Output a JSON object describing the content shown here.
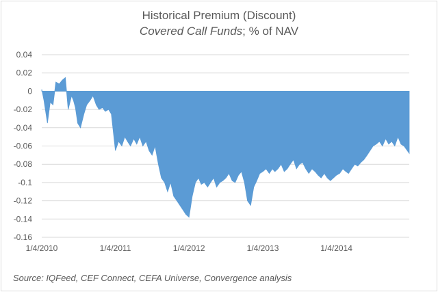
{
  "chart_data": {
    "type": "area",
    "title": "Historical Premium (Discount)",
    "subtitle_italic": "Covered Call Funds",
    "subtitle_rest": "; % of NAV",
    "xlabel": "",
    "ylabel": "",
    "ylim": [
      -0.16,
      0.04
    ],
    "yticks": [
      0.04,
      0.02,
      0,
      -0.02,
      -0.04,
      -0.06,
      -0.08,
      -0.1,
      -0.12,
      -0.14,
      -0.16
    ],
    "ytick_labels": [
      "0.04",
      "0.02",
      "0",
      "-0.02",
      "-0.04",
      "-0.06",
      "-0.08",
      "-0.1",
      "-0.12",
      "-0.14",
      "-0.16"
    ],
    "xlim": [
      "2010-01-04",
      "2014-12-31"
    ],
    "xticks": [
      "2010-01-04",
      "2011-01-04",
      "2012-01-04",
      "2013-01-04",
      "2014-01-04"
    ],
    "xtick_labels": [
      "1/4/2010",
      "1/4/2011",
      "1/4/2012",
      "1/4/2013",
      "1/4/2014"
    ],
    "grid": "horizontal",
    "legend": "none",
    "color": "#5b9bd5",
    "series": [
      {
        "x": [
          "2010-01-04",
          "2010-01-15",
          "2010-02-01",
          "2010-02-15",
          "2010-03-01",
          "2010-03-15",
          "2010-04-01",
          "2010-04-15",
          "2010-05-01",
          "2010-05-15",
          "2010-06-01",
          "2010-06-10",
          "2010-06-20",
          "2010-07-01",
          "2010-07-15",
          "2010-08-01",
          "2010-08-15",
          "2010-09-01",
          "2010-09-15",
          "2010-10-01",
          "2010-10-15",
          "2010-11-01",
          "2010-11-15",
          "2010-12-01",
          "2010-12-15",
          "2011-01-04",
          "2011-01-20",
          "2011-02-05",
          "2011-02-20",
          "2011-03-05",
          "2011-03-20",
          "2011-04-05",
          "2011-04-20",
          "2011-05-05",
          "2011-05-20",
          "2011-06-05",
          "2011-06-20",
          "2011-07-05",
          "2011-07-20",
          "2011-08-05",
          "2011-08-20",
          "2011-09-05",
          "2011-09-20",
          "2011-10-05",
          "2011-10-20",
          "2011-11-05",
          "2011-11-20",
          "2011-12-05",
          "2011-12-20",
          "2012-01-04",
          "2012-01-20",
          "2012-02-05",
          "2012-02-20",
          "2012-03-05",
          "2012-03-20",
          "2012-04-05",
          "2012-04-20",
          "2012-05-05",
          "2012-05-20",
          "2012-06-05",
          "2012-06-20",
          "2012-07-05",
          "2012-07-20",
          "2012-08-05",
          "2012-08-20",
          "2012-09-05",
          "2012-09-20",
          "2012-10-05",
          "2012-10-20",
          "2012-11-05",
          "2012-11-20",
          "2012-12-05",
          "2012-12-20",
          "2013-01-04",
          "2013-01-20",
          "2013-02-05",
          "2013-02-20",
          "2013-03-05",
          "2013-03-20",
          "2013-04-05",
          "2013-04-20",
          "2013-05-05",
          "2013-05-20",
          "2013-06-05",
          "2013-06-20",
          "2013-07-05",
          "2013-07-20",
          "2013-08-05",
          "2013-08-20",
          "2013-09-05",
          "2013-09-20",
          "2013-10-05",
          "2013-10-20",
          "2013-11-05",
          "2013-11-20",
          "2013-12-05",
          "2013-12-20",
          "2014-01-04",
          "2014-01-20",
          "2014-02-05",
          "2014-02-20",
          "2014-03-05",
          "2014-03-20",
          "2014-04-05",
          "2014-04-20",
          "2014-05-05",
          "2014-05-20",
          "2014-06-05",
          "2014-06-20",
          "2014-07-05",
          "2014-07-20",
          "2014-08-05",
          "2014-08-20",
          "2014-09-05",
          "2014-09-20",
          "2014-10-05",
          "2014-10-20",
          "2014-11-05",
          "2014-11-20",
          "2014-12-05",
          "2014-12-31"
        ],
        "values": [
          0.002,
          -0.01,
          -0.035,
          -0.012,
          -0.015,
          0.01,
          0.008,
          0.012,
          0.015,
          -0.02,
          -0.005,
          -0.01,
          -0.018,
          -0.035,
          -0.04,
          -0.025,
          -0.015,
          -0.01,
          -0.005,
          -0.015,
          -0.02,
          -0.018,
          -0.022,
          -0.02,
          -0.025,
          -0.065,
          -0.055,
          -0.06,
          -0.05,
          -0.055,
          -0.06,
          -0.052,
          -0.058,
          -0.05,
          -0.06,
          -0.055,
          -0.065,
          -0.07,
          -0.06,
          -0.08,
          -0.095,
          -0.1,
          -0.11,
          -0.1,
          -0.115,
          -0.12,
          -0.125,
          -0.13,
          -0.135,
          -0.138,
          -0.115,
          -0.1,
          -0.095,
          -0.102,
          -0.1,
          -0.105,
          -0.1,
          -0.095,
          -0.105,
          -0.1,
          -0.098,
          -0.095,
          -0.09,
          -0.098,
          -0.1,
          -0.092,
          -0.088,
          -0.1,
          -0.12,
          -0.125,
          -0.105,
          -0.098,
          -0.09,
          -0.088,
          -0.085,
          -0.09,
          -0.085,
          -0.088,
          -0.085,
          -0.08,
          -0.088,
          -0.085,
          -0.08,
          -0.075,
          -0.085,
          -0.08,
          -0.078,
          -0.085,
          -0.09,
          -0.085,
          -0.088,
          -0.092,
          -0.095,
          -0.09,
          -0.095,
          -0.098,
          -0.095,
          -0.092,
          -0.09,
          -0.085,
          -0.088,
          -0.09,
          -0.085,
          -0.08,
          -0.082,
          -0.078,
          -0.075,
          -0.07,
          -0.065,
          -0.06,
          -0.058,
          -0.055,
          -0.06,
          -0.052,
          -0.058,
          -0.055,
          -0.06,
          -0.05,
          -0.058,
          -0.06,
          -0.068
        ]
      }
    ],
    "source_note": "Source:  IQFeed, CEF Connect, CEFA Universe, Convergence analysis"
  }
}
